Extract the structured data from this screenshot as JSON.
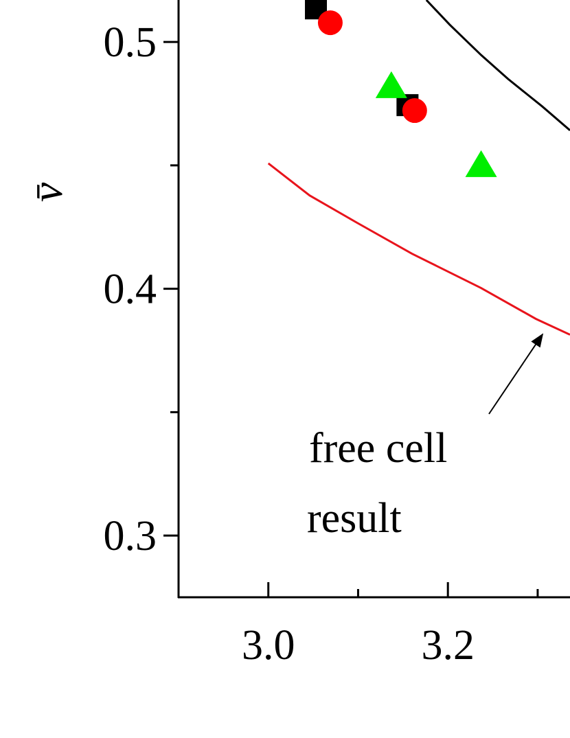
{
  "chart_data": {
    "type": "scatter",
    "y_label": "v̄",
    "xlim": [
      2.9,
      3.336
    ],
    "ylim": [
      0.275,
      0.517
    ],
    "xticks": [
      {
        "value": 3.0,
        "label": "3.0"
      },
      {
        "value": 3.2,
        "label": "3.2"
      }
    ],
    "x_minor_ticks": [
      3.1,
      3.3
    ],
    "yticks": [
      0.3,
      0.4,
      0.5
    ],
    "y_minor_ticks": [
      0.35,
      0.45
    ],
    "series": [
      {
        "kind": "line",
        "color": "#000000",
        "x": [
          3.176,
          3.202,
          3.237,
          3.267,
          3.305,
          3.336
        ],
        "values": [
          0.517,
          0.507,
          0.4947,
          0.485,
          0.4739,
          0.4642
        ]
      },
      {
        "kind": "line",
        "color": "#e8141c",
        "x": [
          3.0,
          3.046,
          3.099,
          3.16,
          3.237,
          3.298,
          3.336
        ],
        "values": [
          0.4508,
          0.4378,
          0.4267,
          0.4142,
          0.4003,
          0.3878,
          0.3814
        ]
      },
      {
        "kind": "marker",
        "marker": "square",
        "color": "#000000",
        "x": [
          3.053,
          3.155
        ],
        "values": [
          0.5136,
          0.4744
        ]
      },
      {
        "kind": "marker",
        "marker": "circle",
        "color": "#ff0000",
        "x": [
          3.069,
          3.163
        ],
        "values": [
          0.5078,
          0.4722
        ]
      },
      {
        "kind": "marker",
        "marker": "triangle",
        "color": "#00ee00",
        "x": [
          3.137,
          3.237
        ],
        "values": [
          0.482,
          0.45
        ]
      }
    ],
    "annotation": {
      "lines": [
        "free cell",
        "result"
      ]
    }
  }
}
